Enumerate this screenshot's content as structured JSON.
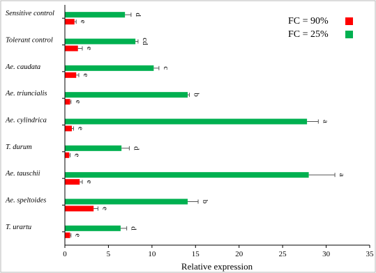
{
  "chart_data": {
    "type": "bar",
    "orientation": "horizontal",
    "categories": [
      "Sensitive control",
      "Tolerant control",
      "Ae. caudata",
      "Ae. triuncialis",
      "Ae. cylindrica",
      "T. durum",
      "Ae. tauschii",
      "Ae. speltoides",
      "T. urartu"
    ],
    "series": [
      {
        "name": "FC = 25%",
        "color": "#00b050",
        "values": [
          6.9,
          8.1,
          10.2,
          14.1,
          27.8,
          6.5,
          28.0,
          14.1,
          6.4
        ],
        "errors": [
          0.7,
          0.3,
          0.6,
          0.2,
          1.3,
          0.9,
          3.0,
          1.2,
          0.7
        ],
        "significance": [
          "d",
          "cd",
          "c",
          "b",
          "a",
          "d",
          "a",
          "b",
          "d"
        ]
      },
      {
        "name": "FC = 90%",
        "color": "#ff0000",
        "values": [
          1.1,
          1.5,
          1.3,
          0.6,
          0.8,
          0.5,
          1.7,
          3.3,
          0.6
        ],
        "errors": [
          0.2,
          0.5,
          0.3,
          0.1,
          0.2,
          0.1,
          0.3,
          0.5,
          0.1
        ],
        "significance": [
          "e",
          "e",
          "e",
          "e",
          "e",
          "e",
          "e",
          "e",
          "e"
        ]
      }
    ],
    "xlabel": "Relative expression",
    "ylabel": "",
    "xlim": [
      0,
      35
    ],
    "xticks": [
      0,
      5,
      10,
      15,
      20,
      25,
      30,
      35
    ],
    "grid": false,
    "legend_position": "top-right"
  }
}
